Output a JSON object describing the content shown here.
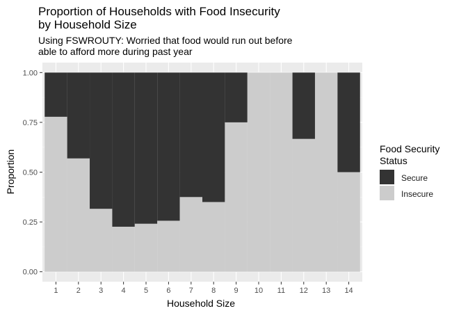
{
  "chart_data": {
    "type": "bar",
    "stacked": true,
    "title_line1": "Proportion of Households with Food Insecurity",
    "title_line2": "by Household Size",
    "subtitle_line1": "Using FSWROUTY: Worried that food would run out before",
    "subtitle_line2": "able to afford more during past year",
    "xlabel": "Household Size",
    "ylabel": "Proportion",
    "categories": [
      "1",
      "2",
      "3",
      "4",
      "5",
      "6",
      "7",
      "8",
      "9",
      "10",
      "11",
      "12",
      "13",
      "14"
    ],
    "yticks": [
      "0.00",
      "0.25",
      "0.50",
      "0.75",
      "1.00"
    ],
    "ylim": [
      0,
      1
    ],
    "grid": true,
    "legend": {
      "title_line1": "Food Security",
      "title_line2": "Status",
      "position": "right"
    },
    "series": [
      {
        "name": "Secure",
        "color": "#333333",
        "values": [
          0.222,
          0.431,
          0.684,
          0.774,
          0.759,
          0.744,
          0.625,
          0.65,
          0.25,
          0,
          0,
          0.333,
          0,
          0.5
        ]
      },
      {
        "name": "Insecure",
        "color": "#cccccc",
        "values": [
          0.778,
          0.569,
          0.316,
          0.226,
          0.241,
          0.256,
          0.375,
          0.35,
          0.75,
          1,
          1,
          0.667,
          1,
          0.5
        ]
      }
    ],
    "colors": {
      "panel_background": "#ebebeb",
      "grid_major": "#ffffff",
      "grid_minor": "#f5f5f5"
    }
  }
}
